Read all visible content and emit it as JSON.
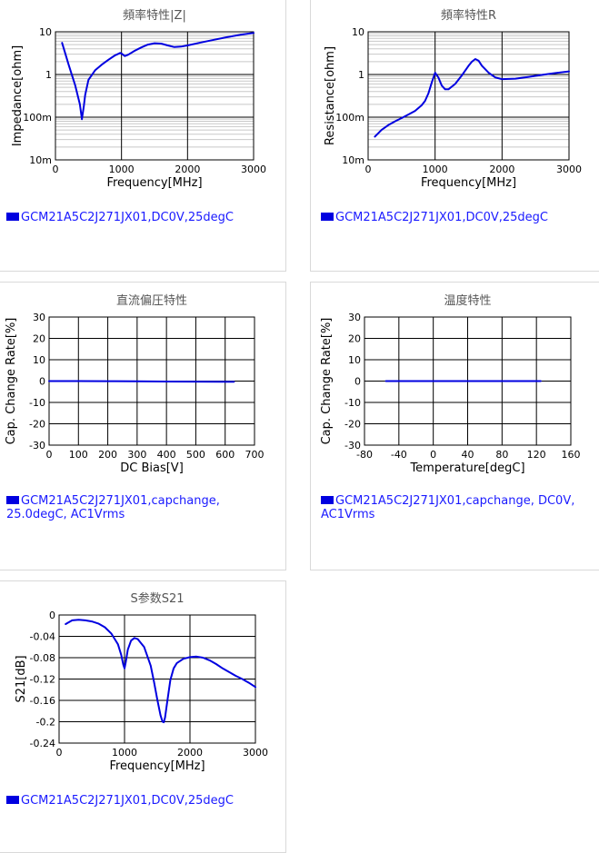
{
  "colors": {
    "curve": "#0000e0",
    "legend_text": "#1a1aff",
    "grid_major": "#000000",
    "grid_minor": "#c8c8c8"
  },
  "chart_data": [
    {
      "id": "impedance",
      "type": "line",
      "title": "頻率特性|Z|",
      "xlabel": "Frequency[MHz]",
      "ylabel": "Impedance[ohm]",
      "xlim": [
        0,
        3000
      ],
      "xticks": [
        "0",
        "1000",
        "2000",
        "3000"
      ],
      "xtick_values": [
        0,
        1000,
        2000,
        3000
      ],
      "ylog": true,
      "ylim": [
        0.01,
        10
      ],
      "yticks": [
        "10m",
        "100m",
        "1",
        "10"
      ],
      "ytick_values": [
        0.01,
        0.1,
        1,
        10
      ],
      "grid": true,
      "legend": "GCM21A5C2J271JX01,DC0V,25degC",
      "series": [
        {
          "x": [
            100,
            200,
            300,
            370,
            400,
            430,
            450,
            500,
            600,
            700,
            800,
            900,
            980,
            1000,
            1050,
            1100,
            1200,
            1300,
            1400,
            1500,
            1600,
            1700,
            1800,
            1900,
            2000,
            2200,
            2400,
            2600,
            2800,
            3000
          ],
          "y": [
            5.5,
            1.7,
            0.55,
            0.2,
            0.09,
            0.18,
            0.33,
            0.75,
            1.25,
            1.7,
            2.2,
            2.8,
            3.2,
            3.1,
            2.7,
            2.9,
            3.6,
            4.3,
            5.0,
            5.4,
            5.3,
            4.8,
            4.4,
            4.5,
            4.8,
            5.6,
            6.5,
            7.5,
            8.5,
            9.4
          ]
        }
      ]
    },
    {
      "id": "resistance",
      "type": "line",
      "title": "頻率特性R",
      "xlabel": "Frequency[MHz]",
      "ylabel": "Resistance[ohm]",
      "xlim": [
        0,
        3000
      ],
      "xticks": [
        "0",
        "1000",
        "2000",
        "3000"
      ],
      "xtick_values": [
        0,
        1000,
        2000,
        3000
      ],
      "ylog": true,
      "ylim": [
        0.01,
        10
      ],
      "yticks": [
        "10m",
        "100m",
        "1",
        "10"
      ],
      "ytick_values": [
        0.01,
        0.1,
        1,
        10
      ],
      "grid": true,
      "legend": "GCM21A5C2J271JX01,DC0V,25degC",
      "series": [
        {
          "x": [
            100,
            200,
            300,
            400,
            500,
            600,
            700,
            800,
            850,
            900,
            950,
            1000,
            1050,
            1100,
            1150,
            1200,
            1300,
            1400,
            1500,
            1550,
            1600,
            1650,
            1700,
            1800,
            1900,
            2000,
            2200,
            2400,
            2600,
            2800,
            3000
          ],
          "y": [
            0.035,
            0.05,
            0.065,
            0.08,
            0.095,
            0.115,
            0.14,
            0.19,
            0.24,
            0.36,
            0.65,
            1.1,
            0.85,
            0.55,
            0.45,
            0.45,
            0.6,
            0.95,
            1.6,
            2.0,
            2.3,
            2.1,
            1.6,
            1.1,
            0.85,
            0.78,
            0.8,
            0.88,
            0.98,
            1.08,
            1.18
          ]
        }
      ]
    },
    {
      "id": "dcbias",
      "type": "line",
      "title": "直流偏圧特性",
      "xlabel": "DC Bias[V]",
      "ylabel": "Cap. Change Rate[%]",
      "xlim": [
        0,
        700
      ],
      "xticks": [
        "0",
        "100",
        "200",
        "300",
        "400",
        "500",
        "600",
        "700"
      ],
      "xtick_values": [
        0,
        100,
        200,
        300,
        400,
        500,
        600,
        700
      ],
      "ylog": false,
      "ylim": [
        -30,
        30
      ],
      "yticks": [
        "-30",
        "-20",
        "-10",
        "0",
        "10",
        "20",
        "30"
      ],
      "ytick_values": [
        -30,
        -20,
        -10,
        0,
        10,
        20,
        30
      ],
      "grid": true,
      "legend": "GCM21A5C2J271JX01,capchange,\n25.0degC, AC1Vrms",
      "series": [
        {
          "x": [
            0,
            100,
            200,
            300,
            400,
            500,
            600,
            630
          ],
          "y": [
            0,
            0,
            -0.05,
            -0.1,
            -0.2,
            -0.25,
            -0.3,
            -0.3
          ]
        }
      ]
    },
    {
      "id": "temperature",
      "type": "line",
      "title": "温度特性",
      "xlabel": "Temperature[degC]",
      "ylabel": "Cap. Change Rate[%]",
      "xlim": [
        -80,
        160
      ],
      "xticks": [
        "-80",
        "-40",
        "0",
        "40",
        "80",
        "120",
        "160"
      ],
      "xtick_values": [
        -80,
        -40,
        0,
        40,
        80,
        120,
        160
      ],
      "ylog": false,
      "ylim": [
        -30,
        30
      ],
      "yticks": [
        "-30",
        "-20",
        "-10",
        "0",
        "10",
        "20",
        "30"
      ],
      "ytick_values": [
        -30,
        -20,
        -10,
        0,
        10,
        20,
        30
      ],
      "grid": true,
      "legend": "GCM21A5C2J271JX01,capchange, DC0V,\nAC1Vrms",
      "series": [
        {
          "x": [
            -55,
            -25,
            0,
            25,
            50,
            75,
            100,
            125
          ],
          "y": [
            0,
            0,
            0,
            0,
            0,
            0,
            0,
            0
          ]
        }
      ]
    },
    {
      "id": "s21",
      "type": "line",
      "title": "S参数S21",
      "xlabel": "Frequency[MHz]",
      "ylabel": "S21[dB]",
      "xlim": [
        0,
        3000
      ],
      "xticks": [
        "0",
        "1000",
        "2000",
        "3000"
      ],
      "xtick_values": [
        0,
        1000,
        2000,
        3000
      ],
      "ylog": false,
      "ylim": [
        -0.24,
        0
      ],
      "yticks": [
        "-0.24",
        "-0.2",
        "-0.16",
        "-0.12",
        "-0.08",
        "-0.04",
        "0"
      ],
      "ytick_values": [
        -0.24,
        -0.2,
        -0.16,
        -0.12,
        -0.08,
        -0.04,
        0
      ],
      "grid": true,
      "legend": "GCM21A5C2J271JX01,DC0V,25degC",
      "series": [
        {
          "x": [
            100,
            200,
            300,
            400,
            500,
            600,
            700,
            800,
            900,
            950,
            980,
            1000,
            1020,
            1050,
            1100,
            1150,
            1200,
            1300,
            1400,
            1450,
            1500,
            1550,
            1580,
            1600,
            1620,
            1650,
            1700,
            1750,
            1800,
            1900,
            2000,
            2100,
            2200,
            2300,
            2400,
            2500,
            2600,
            2700,
            2800,
            2900,
            3000
          ],
          "y": [
            -0.017,
            -0.01,
            -0.009,
            -0.01,
            -0.012,
            -0.016,
            -0.023,
            -0.035,
            -0.055,
            -0.075,
            -0.093,
            -0.1,
            -0.088,
            -0.065,
            -0.048,
            -0.043,
            -0.045,
            -0.06,
            -0.095,
            -0.125,
            -0.158,
            -0.188,
            -0.2,
            -0.201,
            -0.192,
            -0.165,
            -0.122,
            -0.1,
            -0.09,
            -0.082,
            -0.079,
            -0.078,
            -0.08,
            -0.085,
            -0.092,
            -0.1,
            -0.107,
            -0.114,
            -0.12,
            -0.127,
            -0.135
          ]
        }
      ]
    }
  ]
}
